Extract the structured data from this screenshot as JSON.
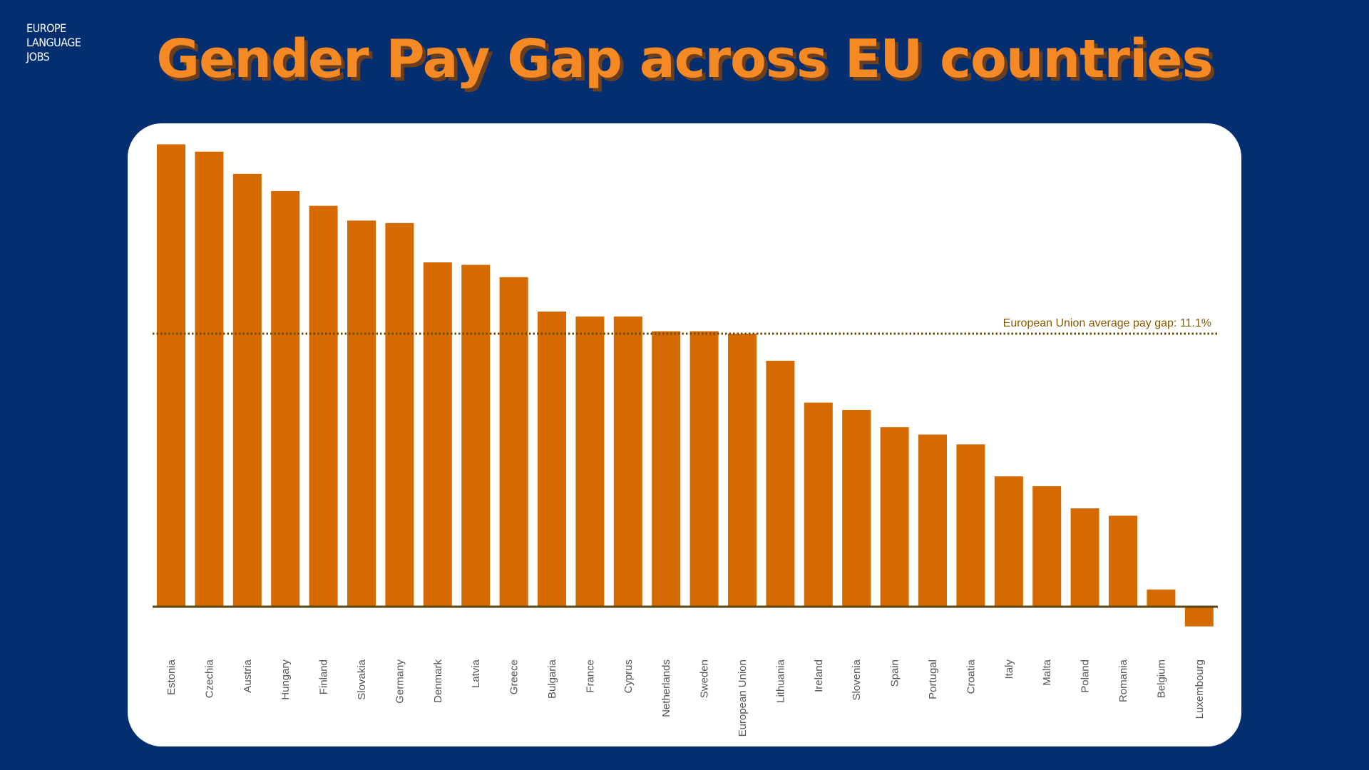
{
  "logo": {
    "line1": "EUROPE",
    "line2": "LANGUAGE",
    "line3": "JOBS"
  },
  "title": "Gender Pay Gap across EU countries",
  "colors": {
    "background": "#032e70",
    "title": "#f58a25",
    "bar": "#d46a00",
    "axis": "#5a4612",
    "average_line": "#6b4a00"
  },
  "chart_data": {
    "type": "bar",
    "categories": [
      "Estonia",
      "Czechia",
      "Austria",
      "Hungary",
      "Finland",
      "Slovakia",
      "Germany",
      "Denmark",
      "Latvia",
      "Greece",
      "Bulgaria",
      "France",
      "Cyprus",
      "Netherlands",
      "Sweden",
      "European Union",
      "Lithuania",
      "Ireland",
      "Slovenia",
      "Spain",
      "Portugal",
      "Croatia",
      "Italy",
      "Malta",
      "Poland",
      "Romania",
      "Belgium",
      "Luxembourg"
    ],
    "values": [
      18.8,
      18.5,
      17.6,
      16.9,
      16.3,
      15.7,
      15.6,
      14.0,
      13.9,
      13.4,
      12.0,
      11.8,
      11.8,
      11.2,
      11.2,
      11.1,
      10.0,
      8.3,
      8.0,
      7.3,
      7.0,
      6.6,
      5.3,
      4.9,
      4.0,
      3.7,
      0.7,
      -0.8
    ],
    "unit": "%",
    "reference_line": {
      "value": 11.1,
      "label": "European Union average pay gap: 11.1%",
      "style": "dotted"
    },
    "ylim": [
      -1,
      19
    ],
    "grid": false,
    "yaxis_visible": false
  }
}
